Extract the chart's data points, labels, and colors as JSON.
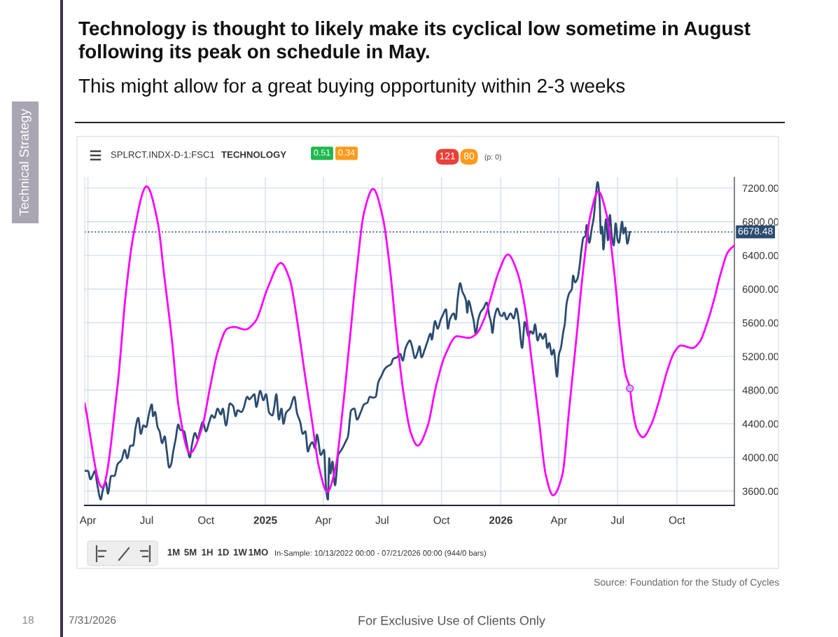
{
  "chart_data": {
    "type": "line",
    "title": "Technology is thought to likely make its cyclical low sometime in August following its peak on schedule in May.",
    "subtitle": "This might allow for a great buying opportunity within 2-3 weeks",
    "series": [
      {
        "color": "#2b4c6f",
        "x": [
          "2024-03-27",
          "2024-04-01",
          "2024-04-05",
          "2024-04-08",
          "2024-04-12",
          "2024-04-15",
          "2024-04-21",
          "2024-04-24",
          "2024-04-29",
          "2024-05-02",
          "2024-05-07",
          "2024-05-12",
          "2024-05-17",
          "2024-05-23",
          "2024-05-28",
          "2024-06-01",
          "2024-06-06",
          "2024-06-10",
          "2024-06-14",
          "2024-06-18",
          "2024-06-22",
          "2024-06-26",
          "2024-06-30",
          "2024-07-05",
          "2024-07-09",
          "2024-07-11",
          "2024-07-14",
          "2024-07-18",
          "2024-07-21",
          "2024-07-25",
          "2024-07-29",
          "2024-08-01",
          "2024-08-05",
          "2024-08-08",
          "2024-08-11",
          "2024-08-15",
          "2024-08-19",
          "2024-08-22",
          "2024-08-28",
          "2024-09-01",
          "2024-09-06",
          "2024-09-09",
          "2024-09-14",
          "2024-09-18",
          "2024-09-22",
          "2024-09-26",
          "2024-10-01",
          "2024-10-06",
          "2024-10-10",
          "2024-10-14",
          "2024-10-19",
          "2024-10-24",
          "2024-10-27",
          "2024-11-01",
          "2024-11-07",
          "2024-11-12",
          "2024-11-16",
          "2024-11-19",
          "2024-11-25",
          "2024-11-28",
          "2024-12-04",
          "2024-12-07",
          "2024-12-11",
          "2024-12-15",
          "2024-12-18",
          "2024-12-24",
          "2024-12-29",
          "2025-01-02",
          "2025-01-07",
          "2025-01-12",
          "2025-01-15",
          "2025-01-18",
          "2025-01-22",
          "2025-01-26",
          "2025-01-29",
          "2025-02-02",
          "2025-02-08",
          "2025-02-15",
          "2025-02-19",
          "2025-02-24",
          "2025-02-28",
          "2025-03-04",
          "2025-03-08",
          "2025-03-11",
          "2025-03-15",
          "2025-03-19",
          "2025-03-22",
          "2025-03-28",
          "2025-04-02",
          "2025-04-05",
          "2025-04-08",
          "2025-04-10",
          "2025-04-12",
          "2025-04-15",
          "2025-04-19",
          "2025-04-24",
          "2025-04-29",
          "2025-05-05",
          "2025-05-09",
          "2025-05-14",
          "2025-05-19",
          "2025-05-23",
          "2025-05-29",
          "2025-06-03",
          "2025-06-08",
          "2025-06-12",
          "2025-06-17",
          "2025-06-21",
          "2025-06-25",
          "2025-06-30",
          "2025-07-05",
          "2025-07-09",
          "2025-07-15",
          "2025-07-18",
          "2025-07-24",
          "2025-07-29",
          "2025-08-02",
          "2025-08-06",
          "2025-08-10",
          "2025-08-13",
          "2025-08-16",
          "2025-08-21",
          "2025-08-25",
          "2025-08-28",
          "2025-08-31",
          "2025-09-05",
          "2025-09-09",
          "2025-09-14",
          "2025-09-16",
          "2025-09-21",
          "2025-09-25",
          "2025-09-30",
          "2025-10-03",
          "2025-10-08",
          "2025-10-11",
          "2025-10-14",
          "2025-10-20",
          "2025-10-23",
          "2025-10-26",
          "2025-10-30",
          "2025-11-02",
          "2025-11-08",
          "2025-11-10",
          "2025-11-12",
          "2025-11-17",
          "2025-11-20",
          "2025-11-23",
          "2025-11-27",
          "2025-12-01",
          "2025-12-05",
          "2025-12-10",
          "2025-12-14",
          "2025-12-17",
          "2025-12-19",
          "2025-12-22",
          "2025-12-27",
          "2025-12-31",
          "2026-01-03",
          "2026-01-06",
          "2026-01-10",
          "2026-01-16",
          "2026-01-21",
          "2026-01-25",
          "2026-01-29",
          "2026-02-03",
          "2026-02-07",
          "2026-02-13",
          "2026-02-16",
          "2026-02-20",
          "2026-02-23",
          "2026-02-27",
          "2026-03-03",
          "2026-03-07",
          "2026-03-11",
          "2026-03-14",
          "2026-03-17",
          "2026-03-21",
          "2026-03-24",
          "2026-03-29",
          "2026-04-01",
          "2026-04-04",
          "2026-04-08",
          "2026-04-10",
          "2026-04-13",
          "2026-04-17",
          "2026-04-21",
          "2026-04-23",
          "2026-04-26",
          "2026-04-30",
          "2026-05-03",
          "2026-05-06",
          "2026-05-09",
          "2026-05-12",
          "2026-05-14",
          "2026-05-18",
          "2026-05-22",
          "2026-05-25",
          "2026-05-28",
          "2026-05-31",
          "2026-06-03",
          "2026-06-05",
          "2026-06-07",
          "2026-06-09",
          "2026-06-13",
          "2026-06-16",
          "2026-06-19",
          "2026-06-22",
          "2026-06-25",
          "2026-06-28",
          "2026-07-01",
          "2026-07-03",
          "2026-07-08",
          "2026-07-10",
          "2026-07-13",
          "2026-07-16",
          "2026-07-20"
        ],
        "values": [
          3840,
          3840,
          3740,
          3780,
          3840,
          3700,
          3500,
          3610,
          3700,
          3570,
          3780,
          3780,
          3920,
          3970,
          4090,
          3990,
          4140,
          4140,
          4360,
          4470,
          4280,
          4380,
          4360,
          4530,
          4630,
          4490,
          4540,
          4360,
          4310,
          4170,
          4250,
          4090,
          3880,
          3920,
          4060,
          4220,
          4390,
          4330,
          4310,
          4170,
          4000,
          4140,
          4290,
          4220,
          4330,
          4420,
          4310,
          4420,
          4500,
          4470,
          4580,
          4510,
          4580,
          4380,
          4640,
          4610,
          4490,
          4560,
          4540,
          4580,
          4720,
          4690,
          4720,
          4750,
          4600,
          4790,
          4680,
          4750,
          4530,
          4500,
          4610,
          4750,
          4450,
          4580,
          4400,
          4530,
          4580,
          4720,
          4530,
          4420,
          4280,
          4310,
          4070,
          4140,
          4180,
          4110,
          4270,
          4030,
          4090,
          3640,
          3500,
          3990,
          3810,
          3950,
          3670,
          4030,
          4090,
          4180,
          4250,
          4560,
          4580,
          4450,
          4540,
          4630,
          4650,
          4720,
          4710,
          4720,
          4890,
          4970,
          5050,
          5080,
          5110,
          5170,
          5190,
          5230,
          5150,
          5290,
          5360,
          5390,
          5330,
          5180,
          5250,
          5320,
          5190,
          5280,
          5370,
          5470,
          5400,
          5620,
          5530,
          5640,
          5690,
          5760,
          5530,
          5640,
          5710,
          5640,
          5880,
          6070,
          5980,
          5860,
          5720,
          5860,
          5720,
          5620,
          5470,
          5640,
          5730,
          5770,
          5840,
          5690,
          5590,
          5480,
          5660,
          5770,
          5690,
          5680,
          5720,
          5640,
          5710,
          5650,
          5770,
          5610,
          5300,
          5610,
          5440,
          5500,
          5470,
          5580,
          5390,
          5470,
          5410,
          5470,
          5300,
          5360,
          5220,
          5280,
          4960,
          5220,
          5300,
          5500,
          5580,
          5830,
          5950,
          6000,
          6160,
          6080,
          6130,
          6270,
          6470,
          6610,
          6630,
          6760,
          6550,
          6720,
          6850,
          7100,
          7270,
          7080,
          6660,
          6740,
          6470,
          6830,
          6580,
          6880,
          6630,
          6520,
          6780,
          6580,
          6550,
          6800,
          6660,
          6730,
          6540,
          6680
        ]
      },
      {
        "color": "#ff00ff",
        "x": [
          "2024-03-27",
          "2024-04-23",
          "2024-05-17",
          "2024-05-30",
          "2024-06-11",
          "2024-07-01",
          "2024-07-18",
          "2024-07-29",
          "2024-08-09",
          "2024-08-20",
          "2024-09-06",
          "2024-09-24",
          "2024-10-08",
          "2024-10-19",
          "2024-11-03",
          "2024-11-13",
          "2024-12-01",
          "2024-12-16",
          "2025-01-05",
          "2025-01-25",
          "2025-02-08",
          "2025-02-19",
          "2025-03-03",
          "2025-03-14",
          "2025-03-25",
          "2025-04-07",
          "2025-04-20",
          "2025-05-01",
          "2025-05-12",
          "2025-05-23",
          "2025-06-03",
          "2025-06-17",
          "2025-07-02",
          "2025-07-13",
          "2025-07-24",
          "2025-08-04",
          "2025-08-15",
          "2025-08-25",
          "2025-09-09",
          "2025-09-23",
          "2025-10-07",
          "2025-10-25",
          "2025-11-12",
          "2025-11-23",
          "2025-12-07",
          "2025-12-14",
          "2025-12-21",
          "2025-12-28",
          "2026-01-12",
          "2026-01-27",
          "2026-02-07",
          "2026-02-18",
          "2026-03-01",
          "2026-03-12",
          "2026-03-23",
          "2026-04-06",
          "2026-04-17",
          "2026-04-28",
          "2026-05-09",
          "2026-05-20",
          "2026-06-01",
          "2026-06-14",
          "2026-06-25",
          "2026-07-06",
          "2026-07-13",
          "2026-07-20",
          "2026-07-24",
          "2026-07-31",
          "2026-08-09",
          "2026-08-22",
          "2026-09-02",
          "2026-09-16",
          "2026-09-27",
          "2026-10-07",
          "2026-10-25",
          "2026-11-05",
          "2026-11-16",
          "2026-11-27",
          "2026-12-08",
          "2026-12-19",
          "2026-12-29"
        ],
        "values": [
          4640,
          3640,
          4860,
          5970,
          6660,
          7220,
          6800,
          6110,
          5410,
          4580,
          4050,
          4330,
          4860,
          5250,
          5530,
          5550,
          5520,
          5610,
          6020,
          6310,
          6110,
          5640,
          5000,
          4450,
          3890,
          3590,
          3890,
          4580,
          5410,
          6250,
          6910,
          7190,
          6850,
          6250,
          5410,
          4720,
          4280,
          4140,
          4360,
          4860,
          5220,
          5440,
          5420,
          5460,
          5660,
          5830,
          6020,
          6190,
          6410,
          6190,
          5800,
          5140,
          4450,
          3780,
          3550,
          3780,
          4580,
          5410,
          6250,
          6880,
          7160,
          6880,
          6250,
          5410,
          5000,
          4820,
          4580,
          4330,
          4240,
          4390,
          4640,
          5030,
          5250,
          5330,
          5300,
          5370,
          5580,
          5860,
          6190,
          6440,
          6520
        ]
      },
      {
        "type": "scatter",
        "color": "#b4c8e4",
        "marker": "circle",
        "x": [
          "2026-07-20"
        ],
        "values": [
          4820
        ]
      }
    ],
    "xlim": [
      "2024-03-27",
      "2026-12-29"
    ],
    "xticks": [
      {
        "value": "2024-04-01",
        "label": "Apr"
      },
      {
        "value": "2024-07-01",
        "label": "Jul"
      },
      {
        "value": "2024-10-01",
        "label": "Oct"
      },
      {
        "value": "2025-01-01",
        "label": "2025"
      },
      {
        "value": "2025-04-01",
        "label": "Apr"
      },
      {
        "value": "2025-07-01",
        "label": "Jul"
      },
      {
        "value": "2025-10-01",
        "label": "Oct"
      },
      {
        "value": "2026-01-01",
        "label": "2026"
      },
      {
        "value": "2026-04-01",
        "label": "Apr"
      },
      {
        "value": "2026-07-01",
        "label": "Jul"
      },
      {
        "value": "2026-10-01",
        "label": "Oct"
      }
    ],
    "ylim": [
      3430,
      7330
    ],
    "yticks": [
      {
        "value": 3600,
        "label": "3600.00"
      },
      {
        "value": 4000,
        "label": "4000.00"
      },
      {
        "value": 4400,
        "label": "4400.00"
      },
      {
        "value": 4800,
        "label": "4800.00"
      },
      {
        "value": 5200,
        "label": "5200.00"
      },
      {
        "value": 5600,
        "label": "5600.00"
      },
      {
        "value": 6000,
        "label": "6000.00"
      },
      {
        "value": 6400,
        "label": "6400.00"
      },
      {
        "value": 6800,
        "label": "6800.00"
      },
      {
        "value": 7200,
        "label": "7200.00"
      }
    ],
    "grid": true,
    "ref_lines": [
      {
        "axis": "y",
        "value": 6678.48,
        "label": "6678.48",
        "color": "#2b4c6f",
        "line_style": "dotted"
      }
    ],
    "annotations": [
      "Technical Strategy",
      "SPLRCT.INDX-D-1:FSC1",
      "TECHNOLOGY",
      "0.51",
      "0.34",
      "121",
      "80",
      "(p: 0)",
      "1M",
      "5M",
      "1H",
      "1D",
      "1W",
      "1MO",
      "In-Sample: 10/13/2022 00:00 - 07/21/2026 00:00 (944/0 bars)",
      "Source: Foundation for the Study of Cycles",
      "18",
      "7/31/2026",
      "For Exclusive Use of Clients Only"
    ]
  }
}
